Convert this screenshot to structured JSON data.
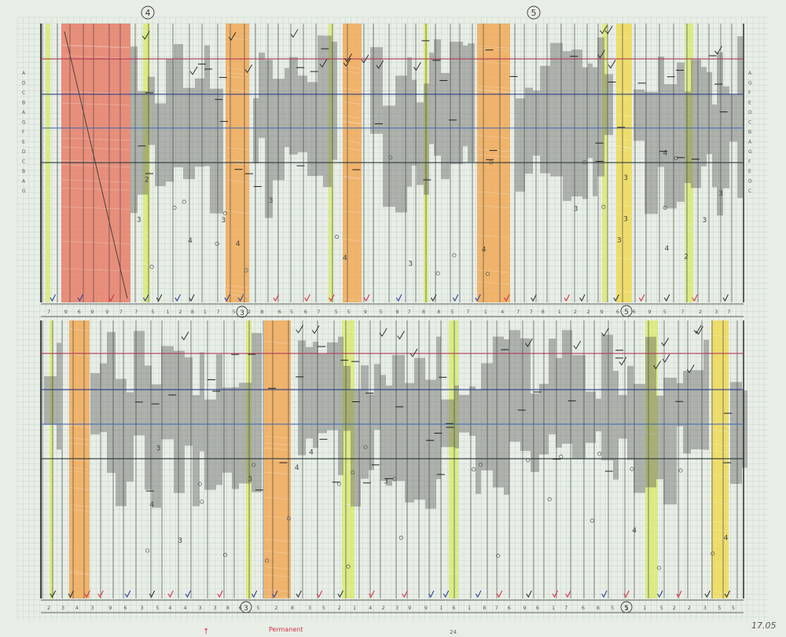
{
  "sheet": {
    "paper_color": "#e8eee6",
    "grid_color": "#8fb5ad",
    "ink_color": "#3a3a3a",
    "staff_line_colors": [
      "#b0395a",
      "#2d3f8c",
      "#4a6fb0",
      "#2b3a3a"
    ],
    "band_colors": {
      "red": "#e8745c",
      "orange": "#f2a44a",
      "yellow": "#f0d94a",
      "lime": "#d8ea6a"
    }
  },
  "markings": {
    "section_4": "4",
    "section_5": "5",
    "section_5b": "5",
    "section_3": "3",
    "section_3b": "3",
    "section_5c": "5",
    "footer_pencil_note": "17.05",
    "footer_red_note": "Permanent",
    "footer_red_arrow": "↑",
    "footer_small_mark": "24"
  },
  "left_scale_labels": [
    "A",
    "D",
    "C",
    "B",
    "A",
    "G",
    "F",
    "E",
    "D",
    "C",
    "B",
    "A",
    "G"
  ],
  "right_scale_labels": [
    "A",
    "G",
    "F",
    "E",
    "D",
    "C",
    "B",
    "A",
    "G",
    "F",
    "E",
    "D",
    "C"
  ]
}
